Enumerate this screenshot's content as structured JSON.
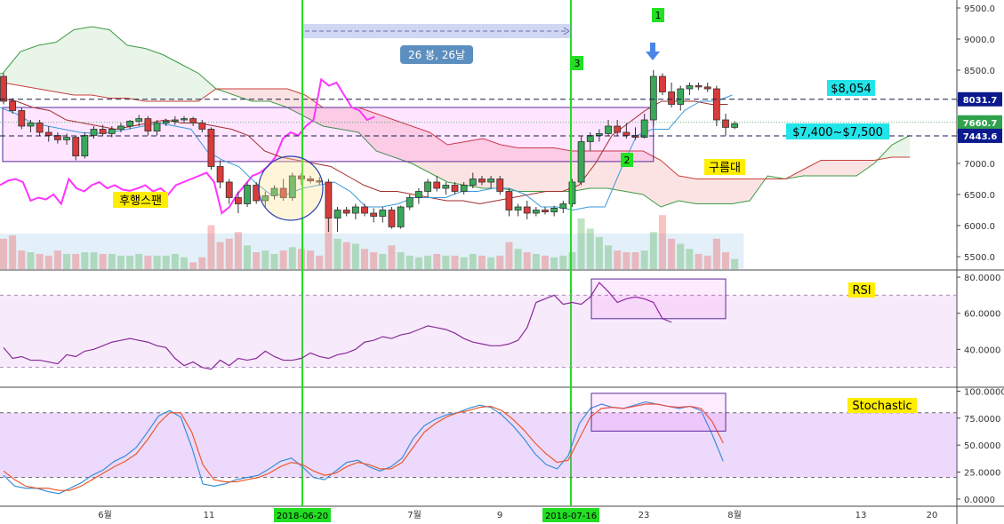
{
  "chart_data": [
    {
      "type": "candlestick",
      "title": "",
      "y_ticks": [
        "9500.0",
        "9000.0",
        "8500.0",
        "8000.0",
        "7500.0",
        "7000.0",
        "6500.0",
        "6000.0",
        "5500.0"
      ],
      "ylim": [
        5300,
        9600
      ],
      "x_ticks": [
        "6월",
        "11",
        "7월",
        "9",
        "23",
        "8월",
        "13",
        "20"
      ],
      "date_markers": [
        "2018-06-20",
        "2018-07-16"
      ],
      "price_labels": [
        {
          "text": "8031.7",
          "value": 8031.7,
          "color": "#0b1a8c"
        },
        {
          "text": "7660.7",
          "value": 7660.7,
          "color": "#31a24c"
        },
        {
          "text": "7443.6",
          "value": 7443.6,
          "color": "#0b1a8c"
        }
      ],
      "hlines": [
        8031.7,
        7443.6
      ],
      "candles": [
        [
          8400,
          8450,
          7950,
          8000
        ],
        [
          8000,
          8050,
          7800,
          7850
        ],
        [
          7850,
          7900,
          7550,
          7600
        ],
        [
          7600,
          7700,
          7500,
          7650
        ],
        [
          7650,
          7700,
          7450,
          7500
        ],
        [
          7500,
          7600,
          7350,
          7450
        ],
        [
          7450,
          7500,
          7320,
          7380
        ],
        [
          7380,
          7480,
          7300,
          7420
        ],
        [
          7420,
          7450,
          7050,
          7120
        ],
        [
          7120,
          7500,
          7080,
          7450
        ],
        [
          7450,
          7600,
          7400,
          7550
        ],
        [
          7550,
          7620,
          7450,
          7480
        ],
        [
          7480,
          7600,
          7420,
          7550
        ],
        [
          7550,
          7650,
          7500,
          7600
        ],
        [
          7600,
          7700,
          7550,
          7680
        ],
        [
          7680,
          7780,
          7600,
          7720
        ],
        [
          7720,
          7760,
          7450,
          7520
        ],
        [
          7520,
          7700,
          7450,
          7650
        ],
        [
          7650,
          7720,
          7600,
          7680
        ],
        [
          7680,
          7760,
          7620,
          7700
        ],
        [
          7700,
          7760,
          7650,
          7720
        ],
        [
          7720,
          7750,
          7600,
          7650
        ],
        [
          7650,
          7700,
          7500,
          7550
        ],
        [
          7550,
          7580,
          6900,
          6950
        ],
        [
          6950,
          7050,
          6600,
          6700
        ],
        [
          6700,
          6750,
          6350,
          6450
        ],
        [
          6450,
          6550,
          6200,
          6350
        ],
        [
          6350,
          6700,
          6300,
          6650
        ],
        [
          6650,
          6700,
          6350,
          6400
        ],
        [
          6400,
          6550,
          6300,
          6480
        ],
        [
          6480,
          6650,
          6420,
          6600
        ],
        [
          6600,
          6750,
          6400,
          6450
        ],
        [
          6450,
          6850,
          6400,
          6800
        ],
        [
          6800,
          6850,
          6650,
          6750
        ],
        [
          6750,
          6800,
          6680,
          6720
        ],
        [
          6720,
          6780,
          6650,
          6700
        ],
        [
          6700,
          6750,
          5900,
          6120
        ],
        [
          6120,
          6300,
          5900,
          6250
        ],
        [
          6250,
          6300,
          6150,
          6200
        ],
        [
          6200,
          6350,
          6100,
          6300
        ],
        [
          6300,
          6350,
          6150,
          6200
        ],
        [
          6200,
          6280,
          6050,
          6150
        ],
        [
          6150,
          6300,
          6050,
          6250
        ],
        [
          6250,
          6300,
          5950,
          5980
        ],
        [
          5980,
          6320,
          5950,
          6300
        ],
        [
          6300,
          6500,
          6250,
          6450
        ],
        [
          6450,
          6600,
          6350,
          6550
        ],
        [
          6550,
          6750,
          6450,
          6700
        ],
        [
          6700,
          6800,
          6550,
          6600
        ],
        [
          6600,
          6700,
          6500,
          6650
        ],
        [
          6650,
          6700,
          6500,
          6550
        ],
        [
          6550,
          6700,
          6500,
          6650
        ],
        [
          6650,
          6850,
          6600,
          6750
        ],
        [
          6750,
          6800,
          6650,
          6700
        ],
        [
          6700,
          6800,
          6600,
          6750
        ],
        [
          6750,
          6800,
          6500,
          6550
        ],
        [
          6550,
          6600,
          6150,
          6250
        ],
        [
          6250,
          6350,
          6150,
          6300
        ],
        [
          6300,
          6400,
          6100,
          6200
        ],
        [
          6200,
          6300,
          6150,
          6250
        ],
        [
          6250,
          6300,
          6180,
          6220
        ],
        [
          6220,
          6320,
          6150,
          6280
        ],
        [
          6280,
          6400,
          6200,
          6350
        ],
        [
          6350,
          6750,
          6300,
          6700
        ],
        [
          6700,
          7450,
          6650,
          7350
        ],
        [
          7350,
          7500,
          7200,
          7450
        ],
        [
          7450,
          7550,
          7350,
          7480
        ],
        [
          7480,
          7700,
          7450,
          7600
        ],
        [
          7600,
          7700,
          7450,
          7500
        ],
        [
          7500,
          7650,
          7400,
          7450
        ],
        [
          7450,
          7580,
          7380,
          7420
        ],
        [
          7420,
          7800,
          7400,
          7700
        ],
        [
          7700,
          8500,
          7600,
          8400
        ],
        [
          8400,
          8450,
          8100,
          8150
        ],
        [
          8150,
          8300,
          7900,
          7950
        ],
        [
          7950,
          8250,
          7850,
          8200
        ],
        [
          8200,
          8300,
          8100,
          8250
        ],
        [
          8250,
          8300,
          8180,
          8230
        ],
        [
          8230,
          8300,
          8150,
          8200
        ],
        [
          8200,
          8250,
          7600,
          7700
        ],
        [
          7700,
          7800,
          7450,
          7580
        ],
        [
          7580,
          7680,
          7550,
          7640
        ]
      ],
      "volume": [
        0.9,
        1.0,
        0.55,
        0.5,
        0.45,
        0.4,
        0.55,
        0.45,
        0.45,
        0.5,
        0.5,
        0.45,
        0.45,
        0.4,
        0.4,
        0.45,
        0.4,
        0.4,
        0.4,
        0.45,
        0.35,
        0.2,
        0.35,
        1.3,
        0.8,
        0.9,
        1.1,
        0.7,
        0.5,
        0.55,
        0.45,
        0.55,
        0.65,
        0.6,
        0.55,
        0.4,
        1.5,
        0.9,
        0.8,
        0.75,
        0.6,
        0.5,
        0.45,
        0.7,
        0.5,
        0.4,
        0.35,
        0.4,
        0.45,
        0.4,
        0.4,
        0.35,
        0.45,
        0.4,
        0.35,
        0.4,
        0.8,
        0.6,
        0.5,
        0.45,
        0.4,
        0.35,
        0.4,
        0.5,
        1.5,
        1.2,
        0.95,
        0.7,
        0.55,
        0.5,
        0.5,
        0.55,
        1.1,
        1.6,
        0.9,
        0.75,
        0.6,
        0.45,
        0.4,
        0.9,
        0.5,
        0.3
      ],
      "series": [
        {
          "name": "",
          "kind": "lagging-span",
          "values": [
            6650,
            6720,
            6750,
            6700,
            6400,
            6450,
            6420,
            6500,
            6350,
            6750,
            6600,
            6550,
            6650,
            6700,
            6600,
            6650,
            6580,
            6560,
            6600,
            6650,
            6550,
            6600,
            6500,
            6650,
            6700,
            6750,
            6800,
            6850,
            6700,
            6200,
            6300,
            6500,
            6650,
            6800,
            6850,
            6950,
            7100,
            7400,
            7500,
            7450,
            7600,
            7700,
            8350,
            8250,
            8300,
            8100,
            7900,
            7850,
            7700,
            7750
          ]
        },
        {
          "name": "",
          "kind": "cloud-span-a",
          "values": [
            8850,
            8600,
            8400,
            8450,
            8800,
            8900,
            8950,
            9150,
            9200,
            9150,
            8900,
            8850,
            8750,
            8600,
            8450,
            8200,
            8100,
            8000,
            8000,
            7900,
            7750,
            7600,
            7550,
            7500,
            7200,
            7100,
            7000,
            6850,
            6700,
            6650,
            6600,
            6600,
            6550,
            6550,
            6550,
            6550,
            6600,
            6600,
            6550,
            6500,
            6300,
            6400,
            6350,
            6350,
            6350,
            6400,
            6800,
            6750,
            6800,
            6800,
            6800,
            6800,
            7000,
            7300,
            7450
          ]
        },
        {
          "name": "",
          "kind": "cloud-span-b",
          "values": [
            8450,
            8400,
            8350,
            8300,
            8250,
            8200,
            8150,
            8100,
            8100,
            8050,
            8050,
            8000,
            8000,
            8000,
            8000,
            8200,
            8200,
            8200,
            8200,
            8200,
            8100,
            7900,
            7900,
            7900,
            7800,
            7700,
            7600,
            7500,
            7300,
            7350,
            7400,
            7300,
            7250,
            7250,
            7250,
            7200,
            7200,
            7200,
            7200,
            7200,
            7050,
            6800,
            6750,
            6750,
            6750,
            6750,
            6750,
            6750,
            6900,
            7050,
            7050,
            7050,
            7050,
            7100,
            7100
          ]
        },
        {
          "name": "",
          "kind": "base-line",
          "values": [
            8050,
            8000,
            7900,
            7850,
            7700,
            7650,
            7600,
            7550,
            7600,
            7650,
            7700,
            7650,
            7650,
            7600,
            7550,
            7450,
            7200,
            7100,
            7050,
            7000,
            6950,
            6800,
            6650,
            6550,
            6550,
            6500,
            6450,
            6400,
            6400,
            6350,
            6400,
            6450,
            6500,
            6550,
            6550,
            6650,
            7000,
            7450,
            7650,
            7850,
            8000,
            8000,
            8000,
            7950,
            7950
          ]
        },
        {
          "name": "",
          "kind": "conversion-line",
          "values": [
            7900,
            7800,
            7650,
            7600,
            7550,
            7500,
            7480,
            7500,
            7550,
            7600,
            7650,
            7600,
            7550,
            7200,
            7050,
            6950,
            6700,
            6500,
            6500,
            6600,
            6650,
            6700,
            6550,
            6300,
            6300,
            6350,
            6450,
            6450,
            6450,
            6550,
            6550,
            6600,
            6600,
            6500,
            6300,
            6300,
            6250,
            6300,
            6300,
            6900,
            7450,
            7550,
            7550,
            7850,
            8000,
            8000,
            8100
          ]
        }
      ],
      "annotations": {
        "label_1": "1",
        "label_2": "2",
        "label_3": "3",
        "period_label": "26 봉, 26날",
        "price_8054": "$8,054",
        "price_range": "$7,400~$7,500",
        "cloud": "구름대",
        "lagging": "후행스팬"
      }
    },
    {
      "type": "line",
      "title": "RSI",
      "y_ticks": [
        "80.0000",
        "60.0000",
        "40.0000"
      ],
      "ylim": [
        20,
        82
      ],
      "band": [
        30,
        70
      ],
      "values": [
        41,
        35,
        36,
        34,
        34,
        33,
        32,
        37,
        36,
        39,
        40,
        42,
        44,
        45,
        46,
        45,
        44,
        42,
        41,
        35,
        31,
        33,
        30,
        29,
        34,
        31,
        35,
        34,
        35,
        39,
        36,
        34,
        34,
        35,
        38,
        36,
        35,
        37,
        38,
        40,
        44,
        45,
        47,
        46,
        48,
        49,
        51,
        53,
        52,
        51,
        49,
        46,
        44,
        43,
        42,
        42,
        43,
        45,
        52,
        66,
        68,
        70,
        65,
        66,
        65,
        69,
        77,
        72,
        66,
        68,
        69,
        68,
        66,
        57,
        55
      ]
    },
    {
      "type": "line",
      "title": "Stochastic",
      "y_ticks": [
        "100.0000",
        "75.0000",
        "50.0000",
        "25.0000",
        "0.0000"
      ],
      "ylim": [
        -5,
        102
      ],
      "band": [
        20,
        80
      ],
      "series": [
        {
          "name": "",
          "color": "#3a8fd6",
          "values": [
            22,
            12,
            10,
            10,
            7,
            5,
            10,
            15,
            22,
            27,
            35,
            40,
            48,
            62,
            77,
            82,
            76,
            48,
            14,
            12,
            14,
            18,
            20,
            22,
            28,
            35,
            38,
            30,
            20,
            18,
            26,
            34,
            36,
            30,
            26,
            30,
            38,
            56,
            68,
            74,
            78,
            80,
            84,
            87,
            85,
            78,
            68,
            56,
            42,
            32,
            28,
            40,
            70,
            84,
            88,
            85,
            84,
            87,
            90,
            88,
            86,
            84,
            86,
            82,
            60,
            35
          ]
        },
        {
          "name": "",
          "color": "#ea5a2e",
          "values": [
            26,
            18,
            12,
            10,
            10,
            8,
            8,
            12,
            18,
            24,
            30,
            35,
            42,
            55,
            70,
            80,
            80,
            62,
            32,
            18,
            16,
            16,
            18,
            20,
            24,
            30,
            34,
            32,
            26,
            22,
            24,
            30,
            34,
            32,
            28,
            28,
            34,
            48,
            62,
            70,
            76,
            80,
            82,
            85,
            86,
            82,
            74,
            64,
            52,
            42,
            34,
            36,
            56,
            76,
            84,
            85,
            84,
            86,
            88,
            88,
            86,
            85,
            86,
            84,
            72,
            52
          ]
        }
      ]
    }
  ]
}
